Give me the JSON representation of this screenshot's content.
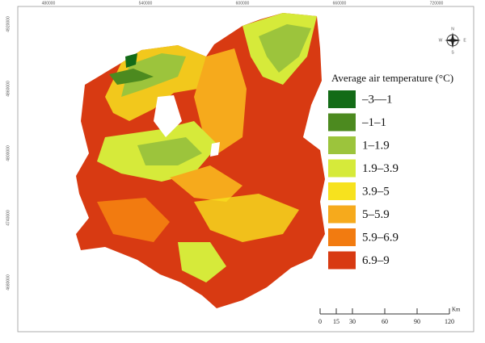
{
  "legend": {
    "title": "Average air temperature (°C)",
    "items": [
      {
        "label": "–3––1",
        "color": "#136b17"
      },
      {
        "label": "–1–1",
        "color": "#4c8a1f"
      },
      {
        "label": "1–1.9",
        "color": "#9cc43c"
      },
      {
        "label": "1.9–3.9",
        "color": "#d6ea3a"
      },
      {
        "label": "3.9–5",
        "color": "#f7e21e"
      },
      {
        "label": "5–5.9",
        "color": "#f6aa1c"
      },
      {
        "label": "5.9–6.9",
        "color": "#f27b10"
      },
      {
        "label": "6.9–9",
        "color": "#d83a12"
      }
    ]
  },
  "scale_bar": {
    "labels": [
      0,
      15,
      30,
      60,
      90,
      120
    ],
    "unit": "Km"
  },
  "north_arrow": {
    "labels": [
      "N",
      "E",
      "S",
      "W"
    ]
  },
  "grid_labels": {
    "top": [
      "480000",
      "540000",
      "600000",
      "660000",
      "720000"
    ],
    "left": [
      "4920000",
      "4860000",
      "4800000",
      "4740000",
      "4680000"
    ]
  }
}
